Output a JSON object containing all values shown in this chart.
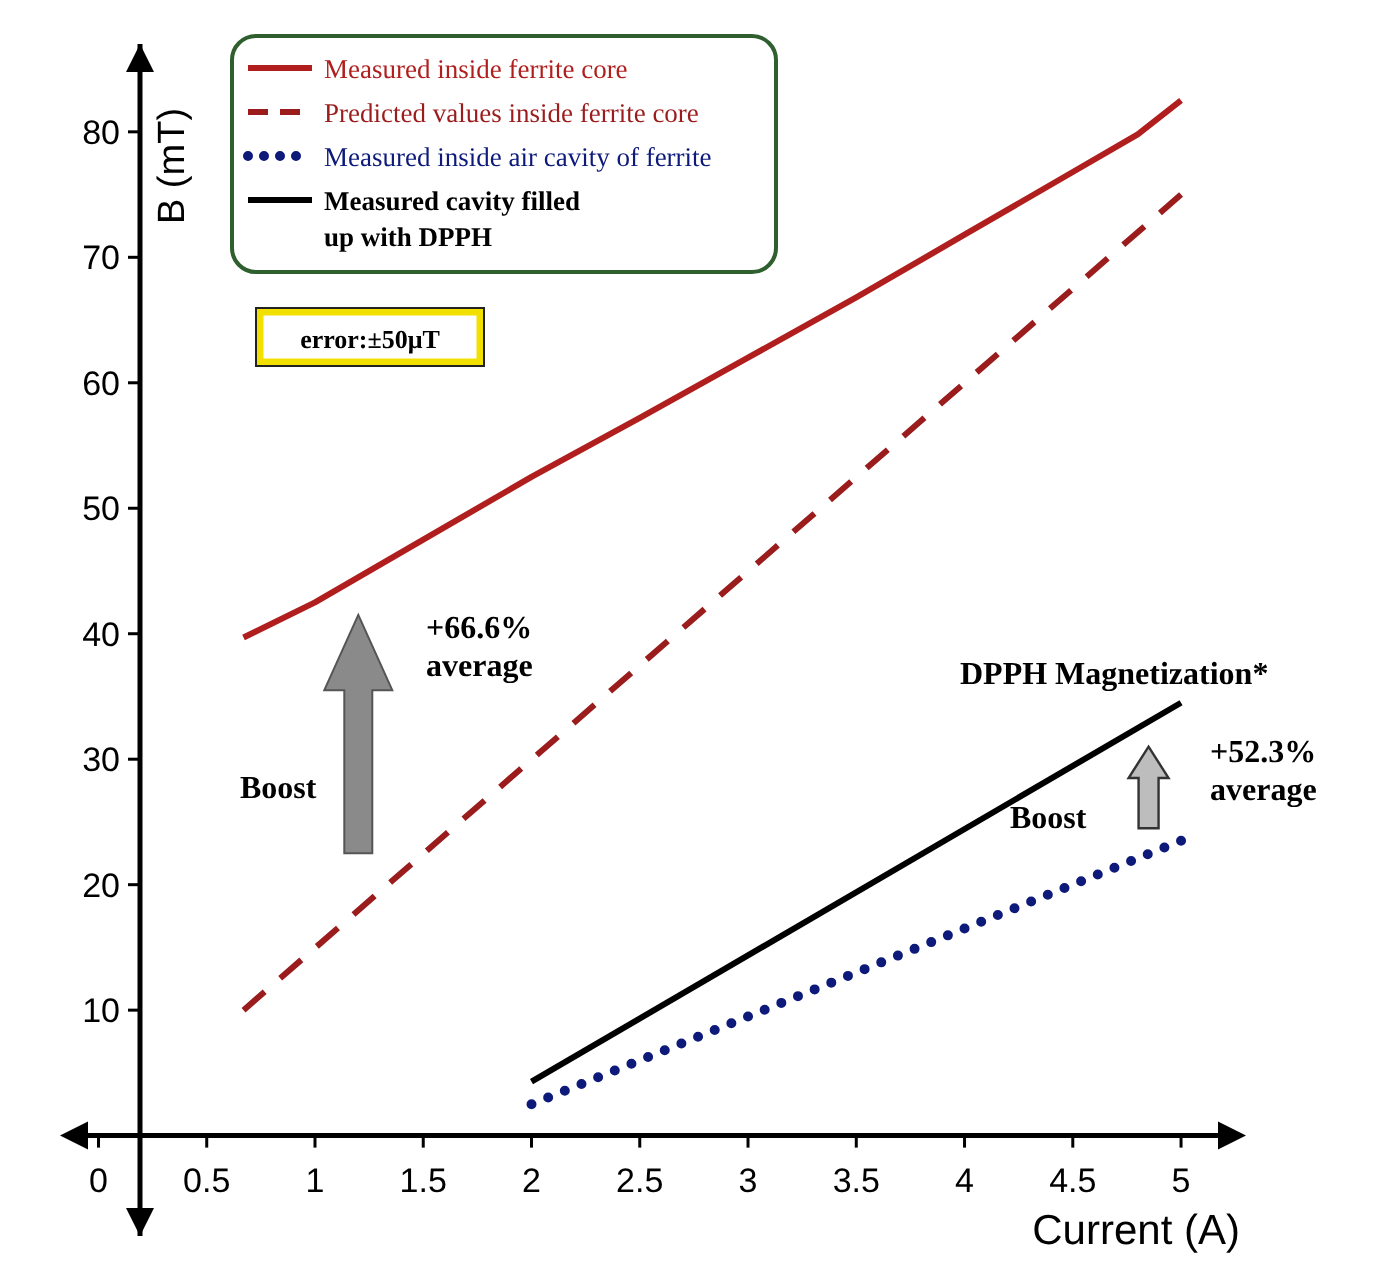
{
  "chart_data": {
    "type": "line",
    "xlabel": "Current (A)",
    "ylabel": "B (mT)",
    "xlim": [
      -0.15,
      5.3
    ],
    "xticks": [
      0,
      0.5,
      1,
      1.5,
      2,
      2.5,
      3,
      3.5,
      4,
      4.5,
      5
    ],
    "ylim": [
      -8,
      87
    ],
    "yticks": [
      10,
      20,
      30,
      40,
      50,
      60,
      70,
      80
    ],
    "series": [
      {
        "name": "Measured inside ferrite core",
        "color": "#b01e1e",
        "line_style": "solid",
        "x": [
          0.67,
          1,
          1.5,
          2,
          2.5,
          3,
          3.5,
          4,
          4.5,
          4.8,
          5
        ],
        "values": [
          39.7,
          42.5,
          47.5,
          52.5,
          57.2,
          62,
          66.8,
          71.8,
          76.8,
          79.8,
          82.5
        ]
      },
      {
        "name": "Predicted values inside ferrite core",
        "color": "#9b1c1c",
        "line_style": "dashed",
        "x": [
          0.67,
          5
        ],
        "values": [
          10,
          75
        ]
      },
      {
        "name": "Measured inside air cavity of ferrite",
        "color": "#0d1a7a",
        "line_style": "dotted",
        "x": [
          2,
          5
        ],
        "values": [
          2.5,
          23.5
        ]
      },
      {
        "name": "Measured cavity filled up with DPPH",
        "color": "#000000",
        "line_style": "solid",
        "x": [
          2,
          5
        ],
        "values": [
          4.3,
          34.5
        ]
      }
    ],
    "marker": "none",
    "legend": "top left",
    "grid": false,
    "annotations": [
      "+66.6%\naverage",
      "Boost",
      "DPPH Magnetization*",
      "+52.3%\naverage",
      "Boost",
      "error:±50μT"
    ]
  }
}
